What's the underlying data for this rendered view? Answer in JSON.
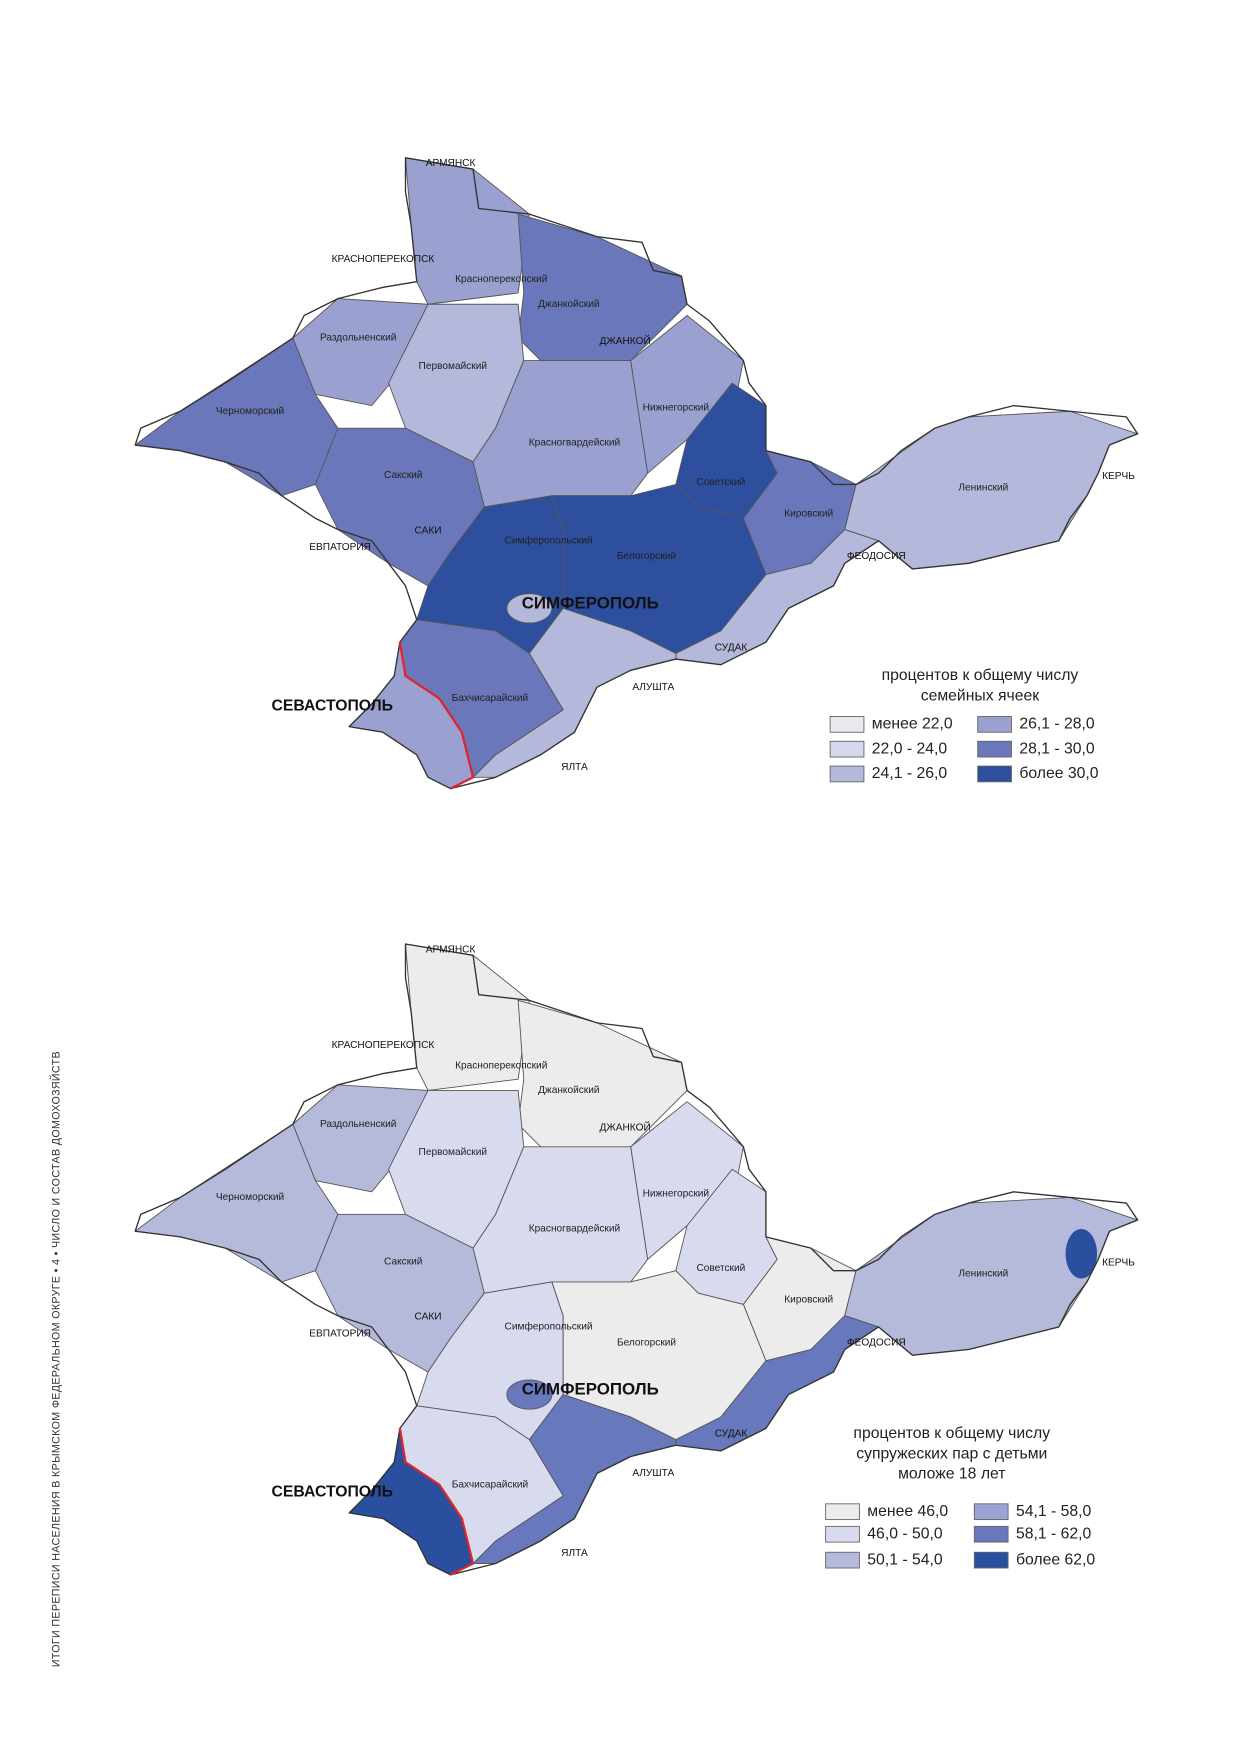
{
  "side_text": "ИТОГИ ПЕРЕПИСИ НАСЕЛЕНИЯ В КРЫМСКОМ ФЕДЕРАЛЬНОМ ОКРУГЕ • 4 • ЧИСЛО И СОСТАВ ДОМОХОЗЯЙСТВ",
  "maps": [
    {
      "labels": [
        "АРМЯНСК",
        "КРАСНОПЕРЕКОПСК",
        "Красноперекопский",
        "Джанкойский",
        "ДЖАНКОЙ",
        "Раздольненский",
        "Первомайский",
        "Нижнегорский",
        "Черноморский",
        "Красногвардейский",
        "Советский",
        "Сакский",
        "Кировский",
        "Ленинский",
        "КЕРЧЬ",
        "САКИ",
        "ЕВПАТОРИЯ",
        "Симферопольский",
        "Белогорский",
        "ФЕОДОСИЯ",
        "СИМФЕРОПОЛЬ",
        "СУДАК",
        "АЛУШТА",
        "СЕВАСТОПОЛЬ",
        "Бахчисарайский",
        "ЯЛТА"
      ],
      "legend": {
        "title": [
          "процентов к общему числу",
          "семейных ячеек"
        ],
        "items": [
          {
            "label": "менее 22,0",
            "color": "#e8e8ee"
          },
          {
            "label": "22,0 - 24,0",
            "color": "#d6d8ec"
          },
          {
            "label": "24,1 - 26,0",
            "color": "#b4b8da"
          },
          {
            "label": "26,1 - 28,0",
            "color": "#9aa0d0"
          },
          {
            "label": "28,1 - 30,0",
            "color": "#6a78bb"
          },
          {
            "label": "более 30,0",
            "color": "#2e4f9e"
          }
        ]
      }
    },
    {
      "labels": [
        "АРМЯНСК",
        "КРАСНОПЕРЕКОПСК",
        "Красноперекопский",
        "Джанкойский",
        "ДЖАНКОЙ",
        "Раздольненский",
        "Первомайский",
        "Нижнегорский",
        "Черноморский",
        "Красногвардейский",
        "Советский",
        "Сакский",
        "Кировский",
        "Ленинский",
        "КЕРЧЬ",
        "САКИ",
        "ЕВПАТОРИЯ",
        "Симферопольский",
        "Белогорский",
        "ФЕОДОСИЯ",
        "СИМФЕРОПОЛЬ",
        "СУДАК",
        "АЛУШТА",
        "СЕВАСТОПОЛЬ",
        "Бахчисарайский",
        "ЯЛТА"
      ],
      "legend": {
        "title": [
          "процентов к общему числу",
          "супружеских пар с детьми",
          "моложе 18 лет"
        ],
        "items": [
          {
            "label": "менее 46,0",
            "color": "#ececec"
          },
          {
            "label": "46,0 - 50,0",
            "color": "#d8dbee"
          },
          {
            "label": "50,1 - 54,0",
            "color": "#b5badb"
          },
          {
            "label": "54,1 - 58,0",
            "color": "#9ca2d1"
          },
          {
            "label": "58,1 - 62,0",
            "color": "#6878bd"
          },
          {
            "label": "более 62,0",
            "color": "#2a4f9e"
          }
        ]
      }
    }
  ]
}
